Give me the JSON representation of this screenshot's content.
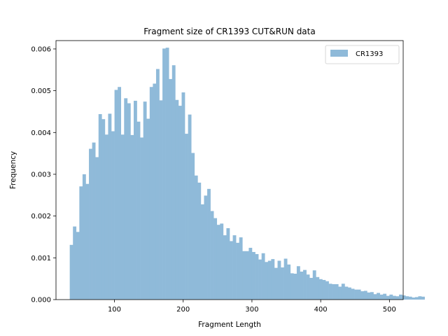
{
  "chart_data": {
    "type": "bar",
    "title": "Fragment size of CR1393 CUT&RUN data",
    "xlabel": "Fragment Length",
    "ylabel": "Frequency",
    "xlim": [
      15,
      520
    ],
    "ylim": [
      0,
      0.0062
    ],
    "xticks": [
      100,
      200,
      300,
      400,
      500
    ],
    "yticks": [
      "0.000",
      "0.001",
      "0.002",
      "0.003",
      "0.004",
      "0.005",
      "0.006"
    ],
    "ytick_values": [
      0,
      0.001,
      0.002,
      0.003,
      0.004,
      0.005,
      0.006
    ],
    "bin_start": 35,
    "bin_width": 4.65,
    "bar_color": "#8fbad9",
    "legend_position": "top-right",
    "series": [
      {
        "name": "CR1393",
        "values": [
          0.00131,
          0.00175,
          0.00162,
          0.00271,
          0.003,
          0.00277,
          0.00361,
          0.00376,
          0.00341,
          0.00444,
          0.00432,
          0.00395,
          0.00445,
          0.00403,
          0.00502,
          0.00509,
          0.00395,
          0.00482,
          0.0047,
          0.00394,
          0.00476,
          0.00426,
          0.00388,
          0.00474,
          0.00433,
          0.00509,
          0.00517,
          0.00552,
          0.00477,
          0.00601,
          0.00603,
          0.00528,
          0.00561,
          0.00478,
          0.00464,
          0.00496,
          0.00397,
          0.00443,
          0.00351,
          0.00297,
          0.0028,
          0.00228,
          0.00249,
          0.00265,
          0.00212,
          0.00195,
          0.00179,
          0.00182,
          0.00154,
          0.00171,
          0.0014,
          0.00154,
          0.00136,
          0.00149,
          0.00116,
          0.00116,
          0.00124,
          0.00114,
          0.00109,
          0.00096,
          0.00111,
          0.0009,
          0.00093,
          0.00097,
          0.00076,
          0.00093,
          0.00077,
          0.00098,
          0.00084,
          0.00063,
          0.00062,
          0.0008,
          0.00067,
          0.00071,
          0.0006,
          0.00052,
          0.0007,
          0.00054,
          0.00049,
          0.00047,
          0.00044,
          0.00038,
          0.00037,
          0.00037,
          0.00031,
          0.00038,
          0.00031,
          0.00029,
          0.00026,
          0.00024,
          0.00024,
          0.0002,
          0.00021,
          0.00017,
          0.00018,
          0.00013,
          0.00016,
          0.00012,
          0.00014,
          9e-05,
          0.00012,
          9e-05,
          8e-05,
          0.00012,
          0.0001,
          8e-05,
          7e-05,
          5e-05,
          6e-05,
          8e-05,
          7e-05
        ]
      }
    ]
  }
}
